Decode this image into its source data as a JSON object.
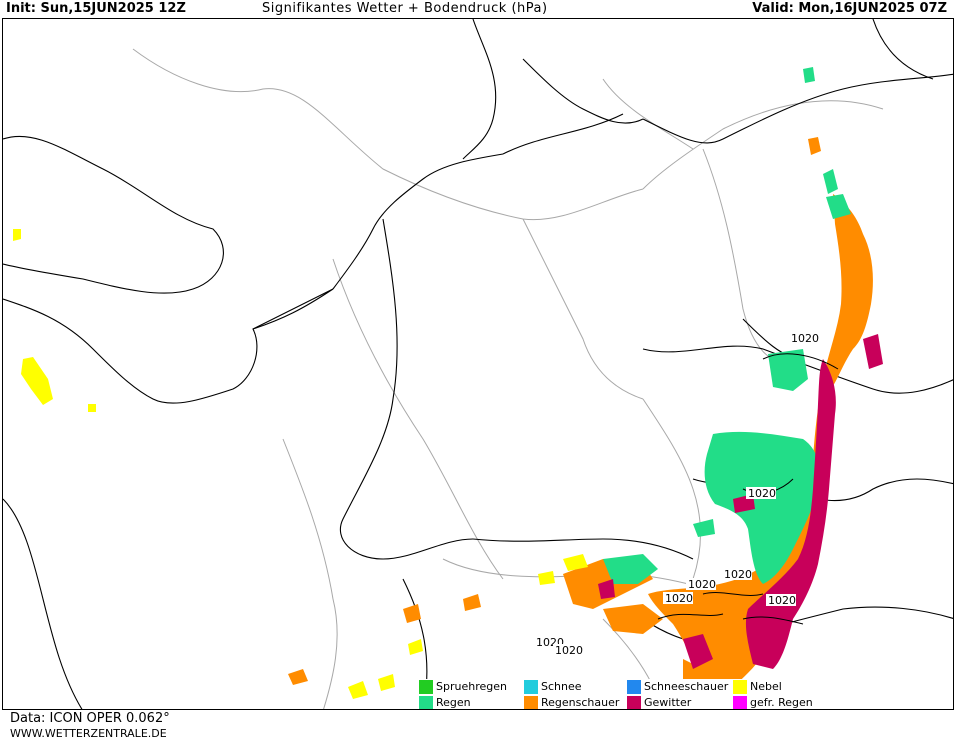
{
  "header": {
    "init": "Init: Sun,15JUN2025 12Z",
    "title": "Signifikantes Wetter + Bodendruck (hPa)",
    "valid": "Valid: Mon,16JUN2025 07Z"
  },
  "isobar_labels": [
    "1020",
    "1020",
    "1020",
    "1020",
    "1020",
    "1020",
    "1020",
    "1020"
  ],
  "legend": [
    {
      "label": "Spruehregen",
      "color": "#22cc22"
    },
    {
      "label": "Schnee",
      "color": "#22ccdd"
    },
    {
      "label": "Schneeschauer",
      "color": "#2288ee"
    },
    {
      "label": "Nebel",
      "color": "#ffff00"
    },
    {
      "label": "Regen",
      "color": "#22dd88"
    },
    {
      "label": "Regenschauer",
      "color": "#ff8c00"
    },
    {
      "label": "Gewitter",
      "color": "#c8005a"
    },
    {
      "label": "gefr. Regen",
      "color": "#ff00ff"
    }
  ],
  "footer": {
    "data": "Data: ICON OPER 0.062°",
    "website": "WWW.WETTERZENTRALE.DE"
  }
}
